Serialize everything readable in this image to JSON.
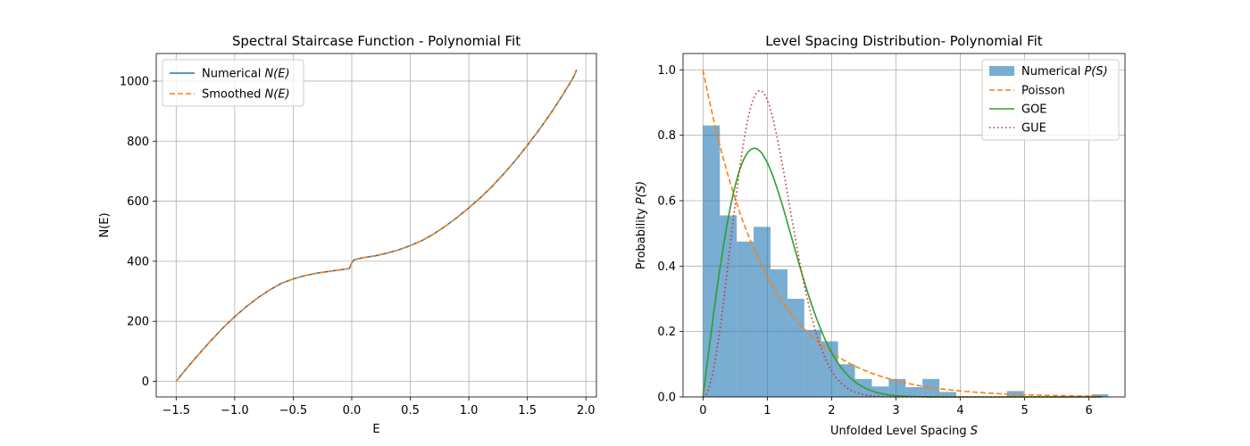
{
  "chart_data": [
    {
      "type": "line",
      "title": "Spectral Staircase Function - Polynomial Fit",
      "xlabel": "E",
      "ylabel": "N(E)",
      "xlim": [
        -1.67,
        2.09
      ],
      "ylim": [
        -52,
        1092
      ],
      "xticks": [
        -1.5,
        -1.0,
        -0.5,
        0.0,
        0.5,
        1.0,
        1.5,
        2.0
      ],
      "xtick_labels": [
        "−1.5",
        "−1.0",
        "−0.5",
        "0.0",
        "0.5",
        "1.0",
        "1.5",
        "2.0"
      ],
      "yticks": [
        0,
        200,
        400,
        600,
        800,
        1000
      ],
      "ytick_labels": [
        "0",
        "200",
        "400",
        "600",
        "800",
        "1000"
      ],
      "grid": true,
      "legend_position": "upper-left",
      "series": [
        {
          "name": "Numerical N(E)",
          "name_parts": {
            "prefix": "Numerical ",
            "math": "N(E)"
          },
          "color": "#1f77b4",
          "style": "solid",
          "x": [
            -1.5,
            -1.4,
            -1.3,
            -1.2,
            -1.1,
            -1.0,
            -0.9,
            -0.8,
            -0.7,
            -0.6,
            -0.5,
            -0.4,
            -0.3,
            -0.2,
            -0.1,
            -0.02,
            0.0,
            0.02,
            0.1,
            0.2,
            0.3,
            0.4,
            0.5,
            0.6,
            0.7,
            0.8,
            0.9,
            1.0,
            1.1,
            1.2,
            1.3,
            1.4,
            1.5,
            1.6,
            1.7,
            1.8,
            1.9,
            1.92
          ],
          "y": [
            0,
            48,
            93,
            137,
            178,
            215,
            249,
            279,
            305,
            327,
            341,
            352,
            360,
            366,
            371,
            376,
            395,
            405,
            412,
            418,
            427,
            438,
            452,
            469,
            491,
            517,
            546,
            578,
            612,
            650,
            692,
            737,
            786,
            838,
            893,
            953,
            1017,
            1038
          ]
        },
        {
          "name": "Smoothed N(E)",
          "name_parts": {
            "prefix": "Smoothed ",
            "math": "N(E)"
          },
          "color": "#ff7f0e",
          "style": "dashed",
          "x": [
            -1.5,
            -1.4,
            -1.3,
            -1.2,
            -1.1,
            -1.0,
            -0.9,
            -0.8,
            -0.7,
            -0.6,
            -0.5,
            -0.4,
            -0.3,
            -0.2,
            -0.1,
            -0.02,
            0.0,
            0.02,
            0.1,
            0.2,
            0.3,
            0.4,
            0.5,
            0.6,
            0.7,
            0.8,
            0.9,
            1.0,
            1.1,
            1.2,
            1.3,
            1.4,
            1.5,
            1.6,
            1.7,
            1.8,
            1.9,
            1.92
          ],
          "y": [
            0,
            48,
            93,
            137,
            178,
            215,
            249,
            279,
            305,
            327,
            341,
            352,
            360,
            366,
            371,
            376,
            395,
            405,
            412,
            418,
            427,
            438,
            452,
            469,
            491,
            517,
            546,
            578,
            612,
            650,
            692,
            737,
            786,
            838,
            893,
            953,
            1017,
            1038
          ]
        }
      ]
    },
    {
      "type": "bar",
      "title": "Level Spacing Distribution- Polynomial Fit",
      "xlabel": "Unfolded Level Spacing S",
      "xlabel_parts": {
        "prefix": "Unfolded Level Spacing ",
        "math": "S"
      },
      "ylabel": "Probability P(S)",
      "ylabel_parts": {
        "prefix": "Probability ",
        "math": "P(S)"
      },
      "xlim": [
        -0.31,
        6.56
      ],
      "ylim": [
        0,
        1.05
      ],
      "xticks": [
        0,
        1,
        2,
        3,
        4,
        5,
        6
      ],
      "xtick_labels": [
        "0",
        "1",
        "2",
        "3",
        "4",
        "5",
        "6"
      ],
      "yticks": [
        0.0,
        0.2,
        0.4,
        0.6,
        0.8,
        1.0
      ],
      "ytick_labels": [
        "0.0",
        "0.2",
        "0.4",
        "0.6",
        "0.8",
        "1.0"
      ],
      "grid": true,
      "legend_position": "upper-right",
      "histogram": {
        "name": "Numerical P(S)",
        "name_parts": {
          "prefix": "Numerical ",
          "math": "P(S)"
        },
        "color": "#1f77b4",
        "opacity": 0.6,
        "bin_width": 0.2625,
        "bin_start": 0,
        "values": [
          0.83,
          0.555,
          0.475,
          0.52,
          0.39,
          0.3,
          0.205,
          0.17,
          0.1,
          0.055,
          0.032,
          0.055,
          0.03,
          0.055,
          0.015,
          0,
          0,
          0,
          0.018,
          0,
          0,
          0,
          0,
          0.008
        ]
      },
      "series": [
        {
          "name": "Poisson",
          "color": "#ff7f0e",
          "style": "dashed",
          "function": "poisson"
        },
        {
          "name": "GOE",
          "color": "#2ca02c",
          "style": "solid",
          "function": "goe"
        },
        {
          "name": "GUE",
          "color": "#d62728",
          "style": "dotted",
          "function": "gue"
        }
      ],
      "curve_x_range": [
        0,
        6.2
      ]
    }
  ]
}
